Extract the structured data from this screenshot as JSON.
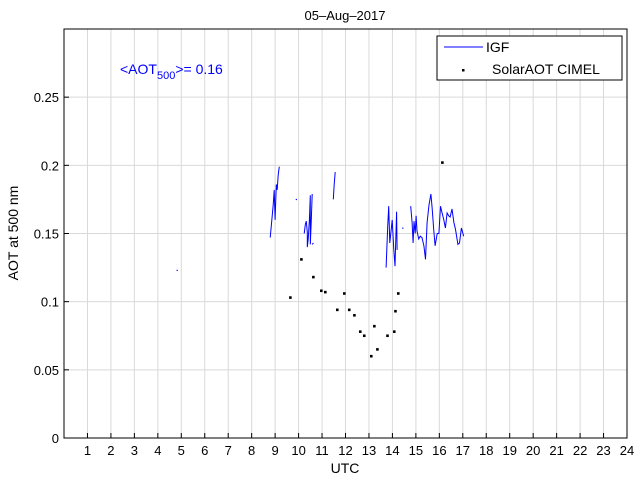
{
  "chart_data": {
    "type": "line",
    "title": "05–Aug–2017",
    "xlabel": "UTC",
    "ylabel": "AOT at 500 nm",
    "xlim": [
      0,
      24
    ],
    "ylim": [
      0,
      0.3
    ],
    "grid": true,
    "xticks": [
      1,
      2,
      3,
      4,
      5,
      6,
      7,
      8,
      9,
      10,
      11,
      12,
      13,
      14,
      15,
      16,
      17,
      18,
      19,
      20,
      21,
      22,
      23,
      24
    ],
    "yticks": [
      0,
      0.05,
      0.1,
      0.15,
      0.2,
      0.25
    ],
    "ytick_labels": [
      "0",
      "0.05",
      "0.1",
      "0.15",
      "0.2",
      "0.25"
    ],
    "annotation": {
      "prefix": "<AOT",
      "subscript": "500",
      "suffix": ">= 0.16",
      "color": "#0000ff"
    },
    "legend": {
      "position": "top-right",
      "entries": [
        "IGF",
        "SolarAOT CIMEL"
      ]
    },
    "series": [
      {
        "name": "IGF",
        "kind": "line",
        "color": "#0000ff",
        "segments": [
          {
            "x": [
              4.82
            ],
            "y": [
              0.123
            ]
          },
          {
            "x": [
              8.79,
              8.83,
              8.92,
              8.96,
              9.0,
              9.05,
              9.09,
              9.13,
              9.18
            ],
            "y": [
              0.147,
              0.154,
              0.171,
              0.182,
              0.16,
              0.186,
              0.182,
              0.193,
              0.199
            ]
          },
          {
            "x": [
              9.9
            ],
            "y": [
              0.175
            ]
          },
          {
            "x": [
              10.24,
              10.29,
              10.33,
              10.37,
              10.37,
              10.41,
              10.46,
              10.5,
              10.5,
              10.54,
              10.58
            ],
            "y": [
              0.15,
              0.157,
              0.159,
              0.151,
              0.14,
              0.146,
              0.16,
              0.178,
              0.142,
              0.16,
              0.179
            ]
          },
          {
            "x": [
              10.58,
              10.63
            ],
            "y": [
              0.142,
              0.143
            ]
          },
          {
            "x": [
              11.48,
              11.52,
              11.56
            ],
            "y": [
              0.175,
              0.186,
              0.195
            ]
          },
          {
            "x": [
              13.73,
              13.8,
              13.84,
              13.89,
              13.99,
              14.06,
              14.11,
              14.18,
              14.2
            ],
            "y": [
              0.125,
              0.155,
              0.17,
              0.143,
              0.16,
              0.138,
              0.126,
              0.166,
              0.138
            ]
          },
          {
            "x": [
              14.44
            ],
            "y": [
              0.154
            ]
          },
          {
            "x": [
              14.78,
              14.84,
              14.88,
              14.92,
              14.97,
              15.01,
              15.05,
              15.12,
              15.19,
              15.26,
              15.34,
              15.41,
              15.48,
              15.56,
              15.64,
              15.69,
              15.76,
              15.82,
              15.91,
              15.98,
              16.05,
              16.12,
              16.19,
              16.26,
              16.33,
              16.4,
              16.46,
              16.54,
              16.62,
              16.69,
              16.79,
              16.86,
              16.94,
              17.04
            ],
            "y": [
              0.17,
              0.158,
              0.143,
              0.159,
              0.15,
              0.163,
              0.152,
              0.146,
              0.148,
              0.147,
              0.141,
              0.131,
              0.158,
              0.171,
              0.179,
              0.169,
              0.153,
              0.141,
              0.15,
              0.15,
              0.17,
              0.165,
              0.16,
              0.154,
              0.165,
              0.163,
              0.162,
              0.168,
              0.158,
              0.153,
              0.142,
              0.143,
              0.154,
              0.148
            ]
          }
        ]
      },
      {
        "name": "SolarAOT CIMEL",
        "kind": "scatter",
        "color": "#000000",
        "x": [
          9.65,
          10.12,
          10.63,
          10.97,
          11.14,
          11.65,
          11.95,
          12.16,
          12.38,
          12.63,
          12.8,
          13.1,
          13.23,
          13.36,
          13.79,
          14.08,
          14.13,
          14.25,
          16.13
        ],
        "y": [
          0.103,
          0.131,
          0.118,
          0.108,
          0.107,
          0.094,
          0.106,
          0.094,
          0.09,
          0.078,
          0.075,
          0.06,
          0.082,
          0.065,
          0.075,
          0.078,
          0.093,
          0.106,
          0.202
        ]
      }
    ]
  }
}
